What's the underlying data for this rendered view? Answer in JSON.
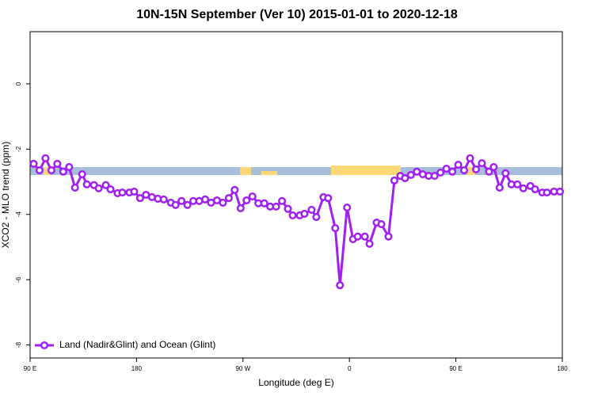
{
  "chart_data": {
    "type": "line",
    "title": "10N-15N September (Ver 10)   2015-01-01 to 2020-12-18",
    "x_label": "Longitude (deg E)",
    "y_label": "XCO2 - MLO trend (ppm)",
    "x": [
      93,
      98,
      103,
      108,
      113,
      118,
      123,
      128,
      134,
      138,
      144,
      148,
      154,
      158,
      164,
      168,
      174,
      178,
      183,
      188,
      193,
      198,
      203,
      209,
      213,
      218,
      223,
      228,
      233,
      238,
      243,
      248,
      253,
      258,
      263,
      268,
      273,
      278,
      283,
      288,
      293,
      298,
      303,
      308,
      312,
      318,
      322,
      328,
      332,
      338,
      342,
      348,
      352,
      358,
      363,
      367,
      373,
      377,
      383,
      387,
      393,
      398,
      403,
      407,
      412,
      417,
      422,
      427,
      432,
      437,
      442,
      447,
      452,
      457,
      462,
      467,
      472,
      478,
      482,
      487,
      492,
      497,
      502,
      507,
      513,
      517,
      523,
      527,
      533,
      538
    ],
    "series": [
      {
        "name": "Land (Nadir&Glint) and Ocean (Glint)",
        "color": "#a020f0",
        "values": [
          -2.45,
          -2.65,
          -2.28,
          -2.65,
          -2.45,
          -2.69,
          -2.55,
          -3.18,
          -2.77,
          -3.08,
          -3.1,
          -3.2,
          -3.1,
          -3.23,
          -3.35,
          -3.33,
          -3.33,
          -3.3,
          -3.5,
          -3.4,
          -3.47,
          -3.52,
          -3.54,
          -3.64,
          -3.71,
          -3.59,
          -3.71,
          -3.59,
          -3.59,
          -3.54,
          -3.64,
          -3.57,
          -3.64,
          -3.5,
          -3.25,
          -3.81,
          -3.57,
          -3.45,
          -3.66,
          -3.66,
          -3.76,
          -3.76,
          -3.59,
          -3.83,
          -4.03,
          -4.03,
          -3.98,
          -3.86,
          -4.08,
          -3.47,
          -3.5,
          -4.42,
          -6.17,
          -3.79,
          -4.76,
          -4.68,
          -4.68,
          -4.9,
          -4.25,
          -4.3,
          -4.68,
          -2.96,
          -2.82,
          -2.89,
          -2.79,
          -2.69,
          -2.77,
          -2.82,
          -2.82,
          -2.72,
          -2.6,
          -2.69,
          -2.48,
          -2.65,
          -2.28,
          -2.62,
          -2.43,
          -2.69,
          -2.55,
          -3.18,
          -2.74,
          -3.08,
          -3.08,
          -3.2,
          -3.13,
          -3.23,
          -3.33,
          -3.33,
          -3.3,
          -3.3
        ]
      }
    ],
    "xlim": [
      90,
      540
    ],
    "xticks": [
      {
        "value": 90,
        "label": "90 E"
      },
      {
        "value": 180,
        "label": "180"
      },
      {
        "value": 270,
        "label": "90 W"
      },
      {
        "value": 360,
        "label": "0"
      },
      {
        "value": 450,
        "label": "90 E"
      },
      {
        "value": 540,
        "label": "180"
      }
    ],
    "ylim": [
      -8.4,
      1.6
    ],
    "yticks": [
      0,
      -2,
      -4,
      -6,
      -8
    ],
    "legend": "bottom-left"
  }
}
